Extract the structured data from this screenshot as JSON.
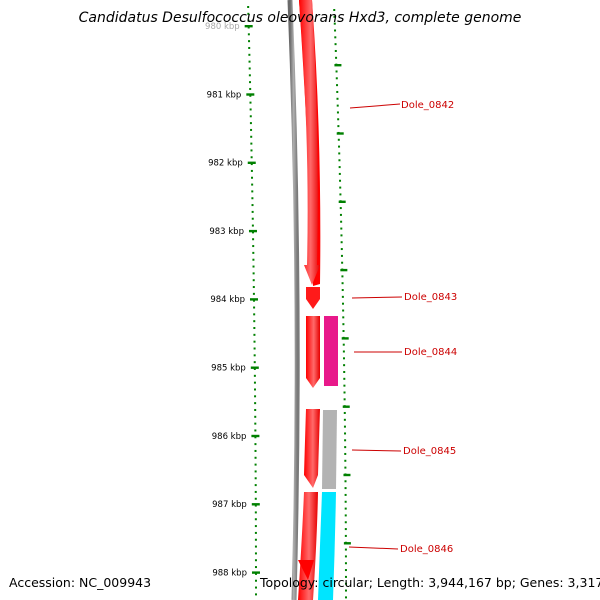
{
  "title": "Candidatus Desulfococcus oleovorans Hxd3, complete genome",
  "footer": {
    "accession": "Accession: NC_009943",
    "summary": "Topology: circular; Length: 3,944,167 bp; Genes: 3,317"
  },
  "scale": {
    "unit": "kbp",
    "labels": [
      "980 kbp",
      "981 kbp",
      "982 kbp",
      "983 kbp",
      "984 kbp",
      "985 kbp",
      "986 kbp",
      "987 kbp",
      "988 kbp"
    ]
  },
  "genes": [
    {
      "name": "Dole_0842"
    },
    {
      "name": "Dole_0843"
    },
    {
      "name": "Dole_0844"
    },
    {
      "name": "Dole_0845"
    },
    {
      "name": "Dole_0846"
    }
  ],
  "colors": {
    "cds_strand": "#ff0000",
    "gene_0844": "#e8198a",
    "gene_0845": "#b3b3b3",
    "gene_0846": "#00ffff",
    "backbone": "#808080",
    "ticks": "#008000",
    "label": "#cc0000"
  }
}
